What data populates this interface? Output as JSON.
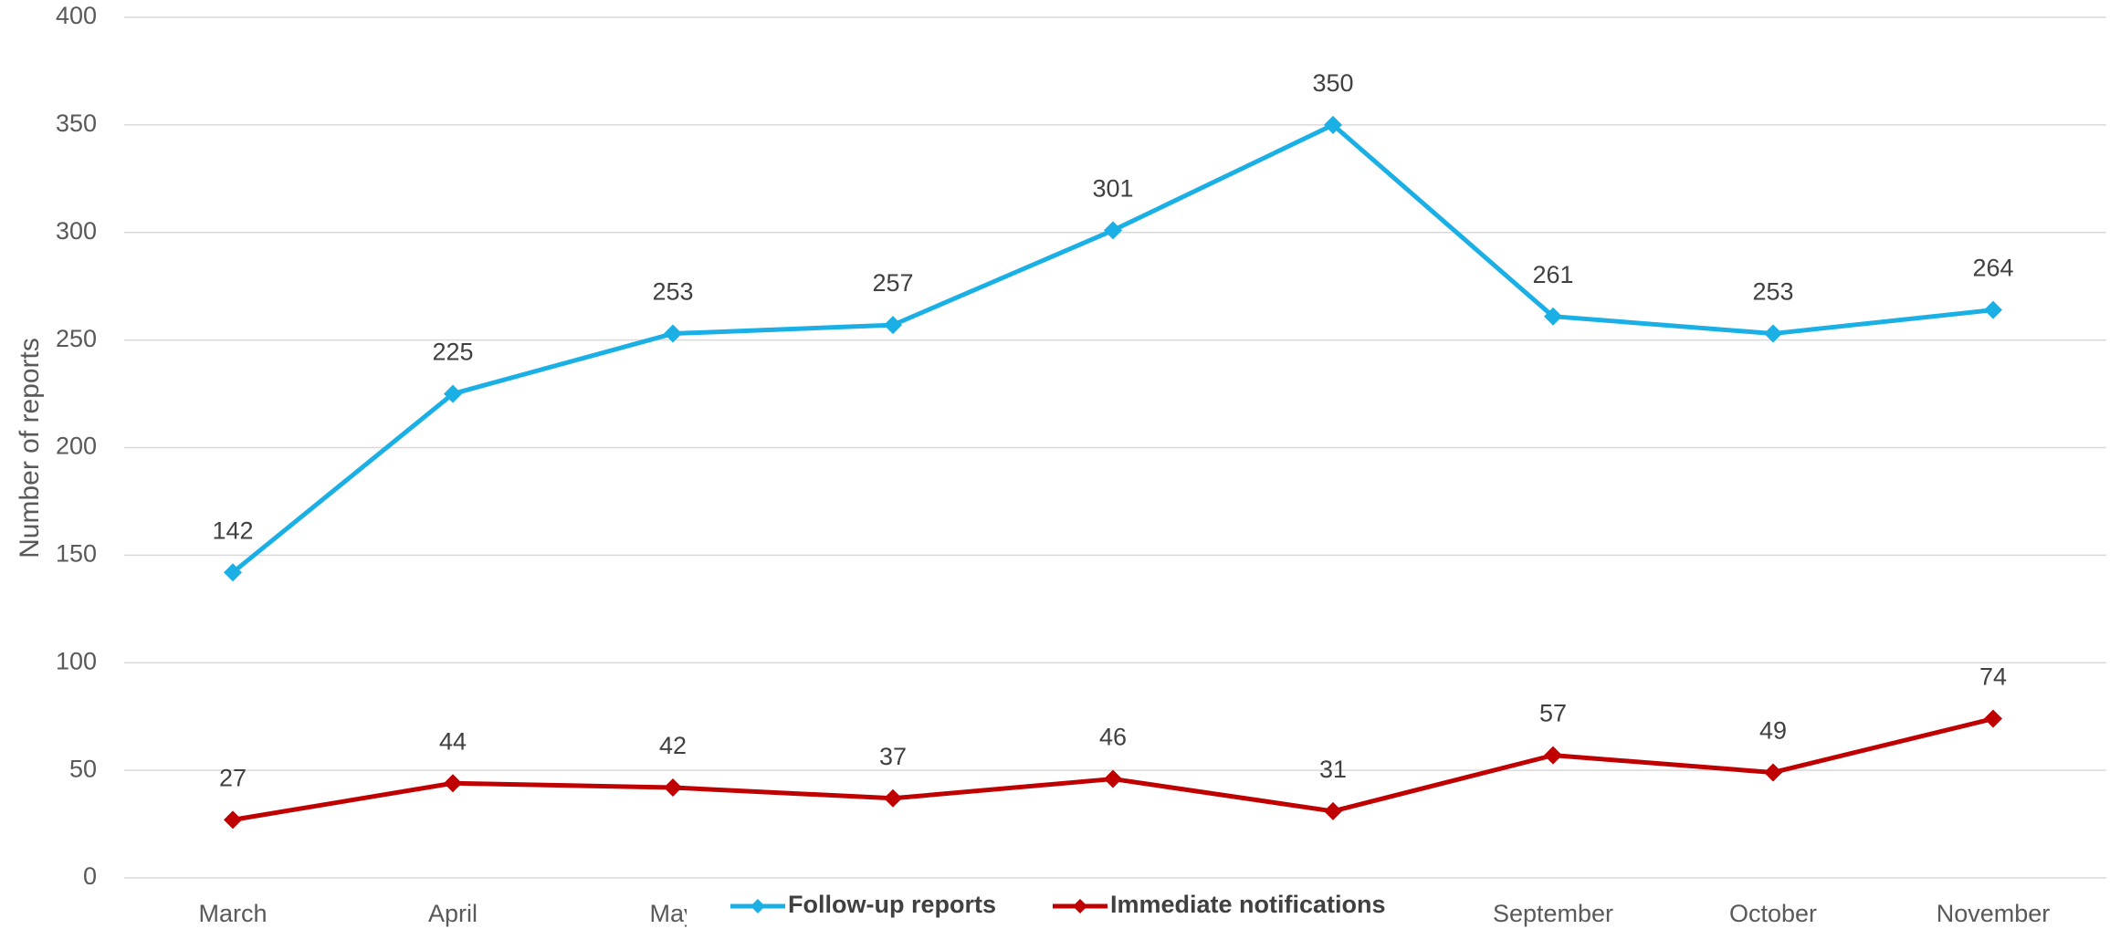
{
  "chart_data": {
    "type": "line",
    "y_label": "Number of reports",
    "categories": [
      "March",
      "April",
      "May",
      null,
      null,
      null,
      "September",
      "October",
      "November"
    ],
    "series": [
      {
        "name": "Follow-up reports",
        "color": "#1ab0e6",
        "values": [
          142,
          225,
          253,
          257,
          301,
          350,
          261,
          253,
          264
        ]
      },
      {
        "name": "Immediate notifications",
        "color": "#c00000",
        "values": [
          27,
          44,
          42,
          37,
          46,
          31,
          57,
          49,
          74
        ]
      }
    ],
    "ylim": [
      0,
      400
    ],
    "yticks": [
      0,
      50,
      100,
      150,
      200,
      250,
      300,
      350,
      400
    ],
    "grid": true,
    "legend": "bottom"
  }
}
